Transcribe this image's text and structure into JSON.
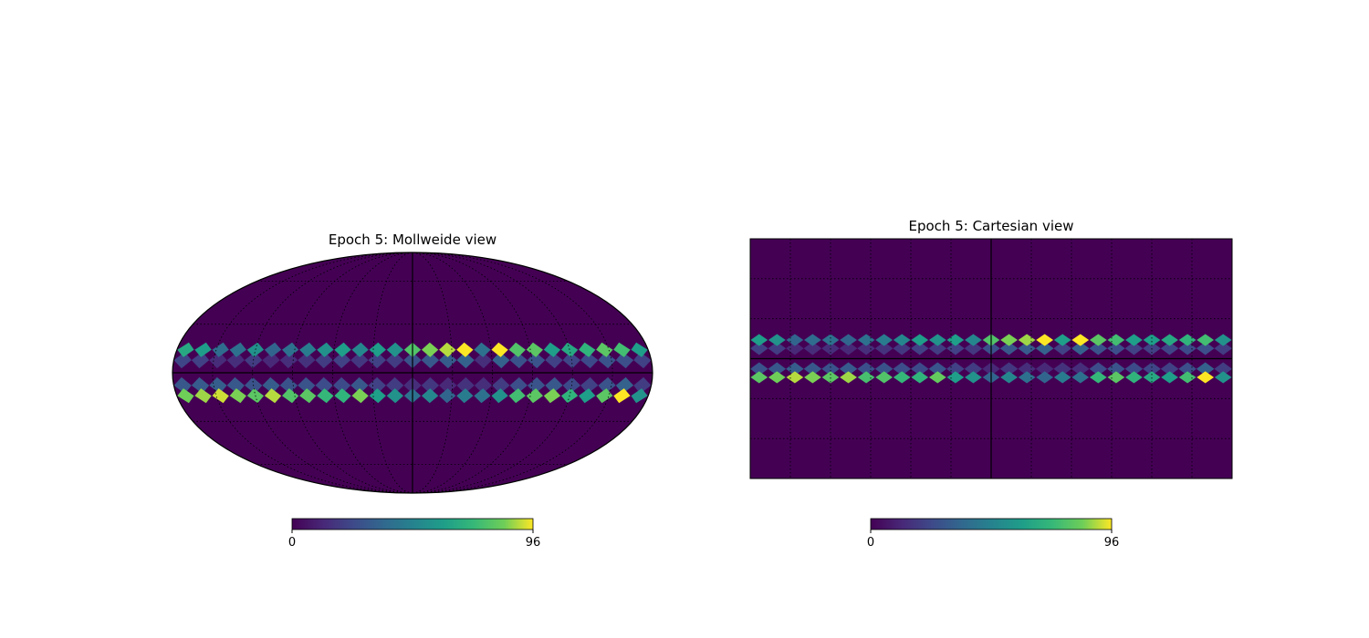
{
  "colors": {
    "background_low": "#440154",
    "mid": "#21918c",
    "high": "#fde725",
    "graticule": "#000000"
  },
  "chart_data": [
    {
      "type": "heatmap",
      "projection": "mollweide",
      "title": "Epoch 5: Mollweide view",
      "colorbar": {
        "min": 0,
        "max": 96,
        "tick_labels": [
          "0",
          "96"
        ],
        "colormap": "viridis"
      },
      "graticule": true,
      "bands": [
        {
          "latitude_deg": 14,
          "values": [
            60,
            75,
            80,
            70,
            65,
            60,
            80,
            78,
            96,
            40,
            96,
            90,
            85,
            78,
            55,
            60,
            50,
            60,
            55,
            45,
            40,
            35,
            55,
            40,
            38,
            60,
            65
          ]
        },
        {
          "latitude_deg": -14,
          "values": [
            55,
            96,
            80,
            60,
            70,
            85,
            80,
            75,
            55,
            40,
            45,
            35,
            50,
            40,
            55,
            60,
            85,
            70,
            72,
            80,
            78,
            90,
            80,
            85,
            92,
            88,
            84
          ]
        }
      ]
    },
    {
      "type": "heatmap",
      "projection": "cartesian",
      "title": "Epoch 5: Cartesian view",
      "colorbar": {
        "min": 0,
        "max": 96,
        "tick_labels": [
          "0",
          "96"
        ],
        "colormap": "viridis"
      },
      "graticule": true,
      "bands": [
        {
          "latitude_deg": 14,
          "values": [
            55,
            75,
            70,
            65,
            60,
            60,
            75,
            80,
            96,
            60,
            96,
            88,
            85,
            78,
            50,
            60,
            55,
            60,
            50,
            45,
            40,
            35,
            40,
            38,
            35,
            55,
            60
          ]
        },
        {
          "latitude_deg": -14,
          "values": [
            55,
            96,
            75,
            60,
            65,
            70,
            80,
            72,
            40,
            45,
            35,
            40,
            50,
            35,
            55,
            60,
            82,
            70,
            72,
            78,
            76,
            88,
            80,
            85,
            90,
            84,
            80
          ]
        }
      ]
    }
  ]
}
